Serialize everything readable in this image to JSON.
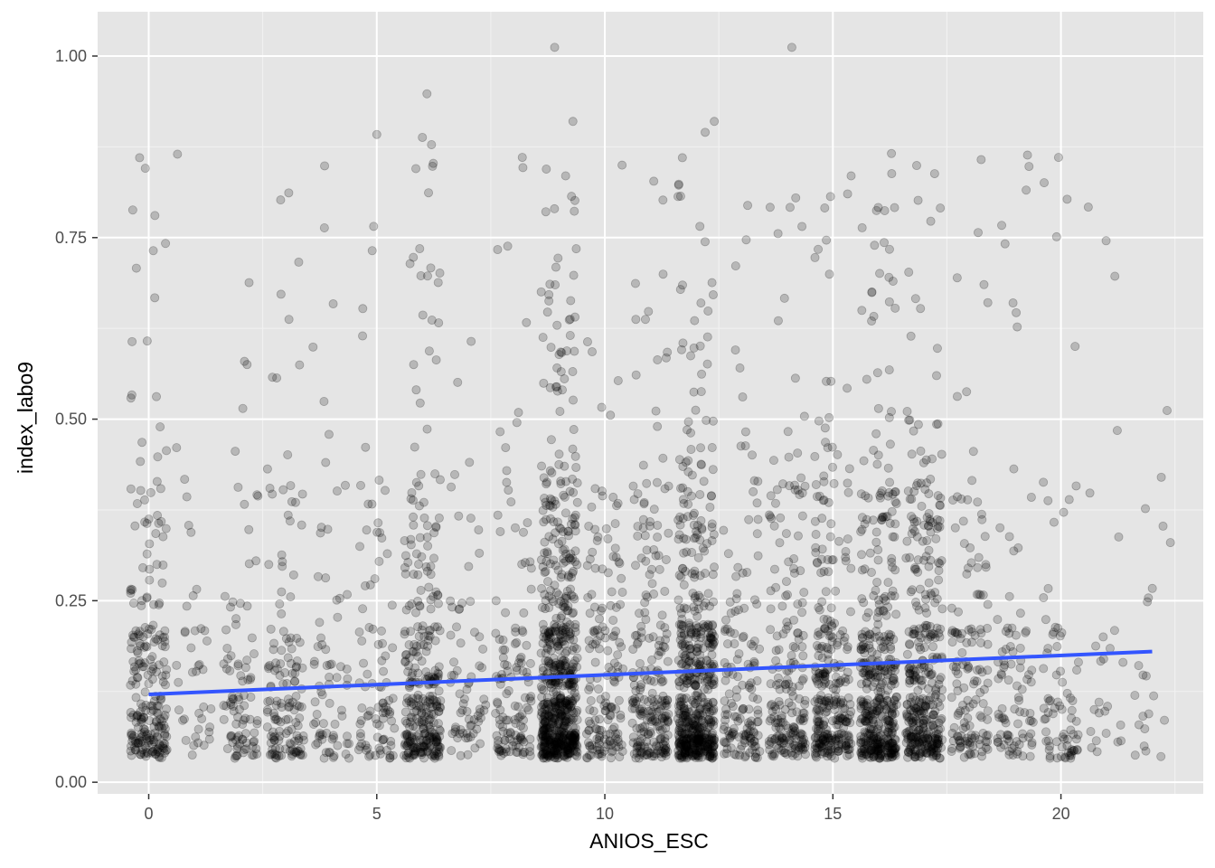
{
  "chart_data": {
    "type": "scatter",
    "title": "",
    "xlabel": "ANIOS_ESC",
    "ylabel": "index_labo9",
    "xlim": [
      -1.12,
      23.12
    ],
    "ylim": [
      -0.016,
      1.061
    ],
    "x_ticks": [
      0,
      5,
      10,
      15,
      20
    ],
    "x_tick_labels": [
      "0",
      "5",
      "10",
      "15",
      "20"
    ],
    "y_ticks": [
      0.0,
      0.25,
      0.5,
      0.75,
      1.0
    ],
    "y_tick_labels": [
      "0.00",
      "0.25",
      "0.50",
      "0.75",
      "1.00"
    ],
    "grid": true,
    "panel_background": "#e5e5e5",
    "point_color": "#000000",
    "point_alpha": 0.2,
    "jitter": true,
    "density_note": "jittered points at integer years of schooling 0-22; densest at 9, 12, 16, 17, 6; values concentrated at multiples of about 0.05 near 0.05-0.15",
    "outlier_points": [
      {
        "x": 8.9,
        "y": 1.012
      },
      {
        "x": 14.1,
        "y": 1.012
      },
      {
        "x": 6.1,
        "y": 0.948
      },
      {
        "x": 9.3,
        "y": 0.91
      },
      {
        "x": 12.4,
        "y": 0.91
      },
      {
        "x": 5.0,
        "y": 0.892
      },
      {
        "x": 6.0,
        "y": 0.888
      },
      {
        "x": 6.2,
        "y": 0.878
      },
      {
        "x": 12.2,
        "y": 0.895
      },
      {
        "x": -0.2,
        "y": 0.86
      },
      {
        "x": 11.7,
        "y": 0.86
      },
      {
        "x": 19.3,
        "y": 0.848
      },
      {
        "x": 15.4,
        "y": 0.835
      },
      {
        "x": -0.35,
        "y": 0.788
      },
      {
        "x": 20.6,
        "y": 0.792
      },
      {
        "x": 0.1,
        "y": 0.732
      },
      {
        "x": 4.9,
        "y": 0.732
      },
      {
        "x": 2.2,
        "y": 0.688
      },
      {
        "x": 2.9,
        "y": 0.672
      },
      {
        "x": 22.2,
        "y": 0.42
      },
      {
        "x": 22.4,
        "y": 0.33
      }
    ],
    "series": [
      {
        "type": "linear-fit",
        "color": "#3355ff",
        "x": [
          0,
          22
        ],
        "y": [
          0.121,
          0.18
        ]
      }
    ]
  }
}
